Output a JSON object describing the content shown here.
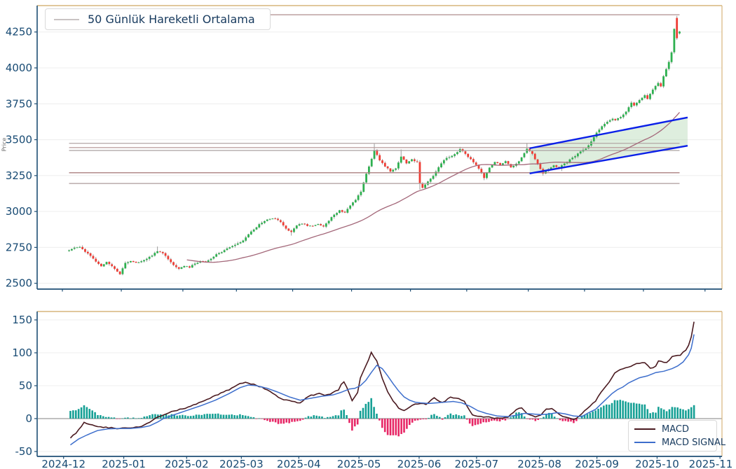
{
  "figure": {
    "background": "#ffffff"
  },
  "x_ticks": [
    {
      "label": "2024-12",
      "day": -0.5
    },
    {
      "label": "2025-01",
      "day": 21.5
    },
    {
      "label": "2025-02",
      "day": 44.5
    },
    {
      "label": "2025-03",
      "day": 64.5
    },
    {
      "label": "2025-04",
      "day": 85.5
    },
    {
      "label": "2025-05",
      "day": 107.5
    },
    {
      "label": "2025-06",
      "day": 129.5
    },
    {
      "label": "2025-07",
      "day": 150.5
    },
    {
      "label": "2025-08",
      "day": 173.5
    },
    {
      "label": "2025-09",
      "day": 194.5
    },
    {
      "label": "2025-10",
      "day": 216.5
    },
    {
      "label": "2025-11",
      "day": 239.5
    }
  ],
  "chart_data": [
    {
      "type": "candlestick",
      "title": "",
      "ylabel": "Price",
      "xlabel": "",
      "y_ticks": [
        2500,
        2750,
        3000,
        3250,
        3500,
        3750,
        4000,
        4250
      ],
      "ylim": [
        2459,
        4434
      ],
      "grid": "horizontal",
      "legend_position": "upper-left",
      "legend": [
        {
          "label": "50 Günlük Hareketli Ortalama",
          "sample_color": "#c9c3c3"
        }
      ],
      "day_range": [
        2,
        230
      ],
      "close_anchors": [
        [
          2,
          2728
        ],
        [
          4,
          2748
        ],
        [
          6,
          2756
        ],
        [
          8,
          2722
        ],
        [
          10,
          2692
        ],
        [
          12,
          2648
        ],
        [
          14,
          2618
        ],
        [
          16,
          2650
        ],
        [
          18,
          2618
        ],
        [
          20,
          2578
        ],
        [
          21,
          2566
        ],
        [
          23,
          2642
        ],
        [
          25,
          2654
        ],
        [
          27,
          2642
        ],
        [
          29,
          2655
        ],
        [
          31,
          2668
        ],
        [
          33,
          2695
        ],
        [
          35,
          2725
        ],
        [
          37,
          2712
        ],
        [
          39,
          2668
        ],
        [
          41,
          2625
        ],
        [
          43,
          2602
        ],
        [
          45,
          2622
        ],
        [
          47,
          2612
        ],
        [
          49,
          2638
        ],
        [
          51,
          2655
        ],
        [
          53,
          2648
        ],
        [
          55,
          2672
        ],
        [
          57,
          2700
        ],
        [
          59,
          2718
        ],
        [
          61,
          2740
        ],
        [
          63,
          2758
        ],
        [
          65,
          2775
        ],
        [
          67,
          2800
        ],
        [
          69,
          2842
        ],
        [
          71,
          2876
        ],
        [
          73,
          2910
        ],
        [
          75,
          2935
        ],
        [
          77,
          2948
        ],
        [
          79,
          2952
        ],
        [
          81,
          2928
        ],
        [
          83,
          2882
        ],
        [
          85,
          2856
        ],
        [
          87,
          2905
        ],
        [
          89,
          2915
        ],
        [
          91,
          2902
        ],
        [
          93,
          2898
        ],
        [
          95,
          2912
        ],
        [
          97,
          2895
        ],
        [
          99,
          2938
        ],
        [
          101,
          2978
        ],
        [
          103,
          3008
        ],
        [
          105,
          2990
        ],
        [
          107,
          3040
        ],
        [
          109,
          3082
        ],
        [
          111,
          3140
        ],
        [
          113,
          3260
        ],
        [
          115,
          3365
        ],
        [
          116,
          3430
        ],
        [
          118,
          3358
        ],
        [
          120,
          3315
        ],
        [
          122,
          3280
        ],
        [
          124,
          3298
        ],
        [
          126,
          3385
        ],
        [
          128,
          3335
        ],
        [
          130,
          3362
        ],
        [
          132,
          3345
        ],
        [
          133,
          3198
        ],
        [
          134,
          3165
        ],
        [
          136,
          3208
        ],
        [
          138,
          3250
        ],
        [
          140,
          3308
        ],
        [
          142,
          3360
        ],
        [
          144,
          3380
        ],
        [
          146,
          3398
        ],
        [
          148,
          3435
        ],
        [
          150,
          3400
        ],
        [
          152,
          3362
        ],
        [
          154,
          3325
        ],
        [
          156,
          3270
        ],
        [
          157,
          3235
        ],
        [
          159,
          3305
        ],
        [
          161,
          3345
        ],
        [
          163,
          3325
        ],
        [
          165,
          3348
        ],
        [
          167,
          3308
        ],
        [
          169,
          3330
        ],
        [
          171,
          3375
        ],
        [
          173,
          3440
        ],
        [
          175,
          3400
        ],
        [
          177,
          3332
        ],
        [
          179,
          3265
        ],
        [
          181,
          3295
        ],
        [
          183,
          3320
        ],
        [
          185,
          3305
        ],
        [
          187,
          3335
        ],
        [
          189,
          3360
        ],
        [
          191,
          3385
        ],
        [
          193,
          3418
        ],
        [
          195,
          3440
        ],
        [
          197,
          3485
        ],
        [
          199,
          3550
        ],
        [
          201,
          3596
        ],
        [
          203,
          3626
        ],
        [
          205,
          3648
        ],
        [
          206,
          3634
        ],
        [
          208,
          3660
        ],
        [
          210,
          3695
        ],
        [
          212,
          3755
        ],
        [
          213,
          3740
        ],
        [
          215,
          3776
        ],
        [
          217,
          3808
        ],
        [
          218,
          3784
        ],
        [
          220,
          3848
        ],
        [
          222,
          3898
        ],
        [
          223,
          3874
        ],
        [
          224,
          3942
        ],
        [
          225,
          3994
        ],
        [
          226,
          4040
        ],
        [
          227,
          4108
        ],
        [
          228,
          4272
        ],
        [
          229,
          4208
        ],
        [
          230,
          4255
        ]
      ],
      "open_overrides": {
        "229": 4348,
        "230": 4240
      },
      "high_overrides": {
        "35": 2756,
        "116": 3472,
        "126": 3432,
        "148": 3450,
        "173": 3478,
        "197": 3502,
        "229": 4362
      },
      "low_overrides": {
        "21": 2558,
        "43": 2592,
        "85": 2832,
        "133": 3152,
        "157": 3218,
        "179": 3250,
        "186": 3282
      },
      "ma_label": "50 Günlük Hareketli Ortalama",
      "hlines": [
        {
          "value": 4370,
          "color": "#ad8d8d"
        },
        {
          "value": 3475,
          "color": "#b3a6a6"
        },
        {
          "value": 3445,
          "color": "#b89a9a"
        },
        {
          "value": 3425,
          "color": "#a8a0a0"
        },
        {
          "value": 3270,
          "color": "#ab7f7f"
        },
        {
          "value": 3195,
          "color": "#b3a2a2"
        }
      ],
      "channel": {
        "start_day": 174,
        "end_day": 233,
        "top_values": [
          3440,
          3655
        ],
        "bottom_values": [
          3265,
          3458
        ]
      }
    },
    {
      "type": "macd",
      "title": "",
      "ylabel": "",
      "xlabel": "",
      "y_ticks": [
        -50,
        0,
        50,
        100,
        150
      ],
      "ylim": [
        -57.5,
        163
      ],
      "grid": "horizontal",
      "legend_position": "lower-right",
      "legend": [
        {
          "label": "MACD",
          "sample_color": "#4a1a20"
        },
        {
          "label": "MACD SIGNAL",
          "sample_color": "#3d6ecc"
        }
      ],
      "day_range": [
        2,
        230
      ],
      "macd_anchors": [
        [
          2,
          -29
        ],
        [
          4,
          -22
        ],
        [
          7,
          -6
        ],
        [
          9,
          -9
        ],
        [
          11,
          -11
        ],
        [
          14,
          -13
        ],
        [
          17,
          -14
        ],
        [
          20,
          -15
        ],
        [
          24,
          -14
        ],
        [
          27,
          -13
        ],
        [
          29,
          -10
        ],
        [
          31,
          -6
        ],
        [
          33,
          0
        ],
        [
          36,
          6
        ],
        [
          40,
          12
        ],
        [
          45,
          17
        ],
        [
          50,
          26
        ],
        [
          55,
          35
        ],
        [
          61,
          46
        ],
        [
          64,
          53
        ],
        [
          66,
          55
        ],
        [
          68,
          53
        ],
        [
          72,
          48
        ],
        [
          76,
          38
        ],
        [
          79,
          30
        ],
        [
          83,
          26
        ],
        [
          86,
          24
        ],
        [
          89,
          34
        ],
        [
          93,
          38
        ],
        [
          95,
          36
        ],
        [
          97,
          37
        ],
        [
          100,
          44
        ],
        [
          101,
          52
        ],
        [
          102,
          56
        ],
        [
          103,
          48
        ],
        [
          105,
          27
        ],
        [
          107,
          40
        ],
        [
          108,
          62
        ],
        [
          110,
          80
        ],
        [
          112,
          100
        ],
        [
          114,
          88
        ],
        [
          116,
          62
        ],
        [
          118,
          40
        ],
        [
          120,
          27
        ],
        [
          122,
          16
        ],
        [
          124,
          12
        ],
        [
          126,
          18
        ],
        [
          128,
          22
        ],
        [
          130,
          23
        ],
        [
          132,
          22
        ],
        [
          135,
          31
        ],
        [
          138,
          24
        ],
        [
          141,
          33
        ],
        [
          144,
          30
        ],
        [
          146,
          27
        ],
        [
          149,
          5
        ],
        [
          152,
          3
        ],
        [
          154,
          3
        ],
        [
          157,
          1
        ],
        [
          159,
          0
        ],
        [
          162,
          2
        ],
        [
          165,
          14
        ],
        [
          167,
          16
        ],
        [
          169,
          8
        ],
        [
          172,
          3
        ],
        [
          174,
          6
        ],
        [
          176,
          14
        ],
        [
          178,
          16
        ],
        [
          181,
          5
        ],
        [
          185,
          0
        ],
        [
          186,
          -2
        ],
        [
          188,
          3
        ],
        [
          191,
          16
        ],
        [
          194,
          27
        ],
        [
          196,
          40
        ],
        [
          199,
          56
        ],
        [
          201,
          69
        ],
        [
          204,
          76
        ],
        [
          207,
          80
        ],
        [
          209,
          83
        ],
        [
          212,
          85
        ],
        [
          214,
          76
        ],
        [
          216,
          80
        ],
        [
          217,
          88
        ],
        [
          220,
          85
        ],
        [
          222,
          94
        ],
        [
          225,
          97
        ],
        [
          227,
          104
        ],
        [
          228,
          112
        ],
        [
          229,
          125
        ],
        [
          230,
          148
        ]
      ],
      "signal_anchors": [
        [
          2,
          -40
        ],
        [
          5,
          -31
        ],
        [
          8,
          -25
        ],
        [
          12,
          -18
        ],
        [
          16,
          -15.5
        ],
        [
          20,
          -15
        ],
        [
          24,
          -15
        ],
        [
          28,
          -13.5
        ],
        [
          31,
          -11
        ],
        [
          34,
          -5
        ],
        [
          36,
          0
        ],
        [
          40,
          6
        ],
        [
          45,
          13
        ],
        [
          50,
          20
        ],
        [
          55,
          28
        ],
        [
          60,
          38
        ],
        [
          64,
          47
        ],
        [
          67,
          51
        ],
        [
          70,
          50
        ],
        [
          74,
          46
        ],
        [
          78,
          40
        ],
        [
          82,
          33
        ],
        [
          86,
          28
        ],
        [
          90,
          31
        ],
        [
          94,
          34
        ],
        [
          98,
          36
        ],
        [
          101,
          40
        ],
        [
          104,
          45
        ],
        [
          106,
          46
        ],
        [
          108,
          50
        ],
        [
          110,
          58
        ],
        [
          112,
          70
        ],
        [
          114,
          81
        ],
        [
          116,
          76
        ],
        [
          118,
          65
        ],
        [
          120,
          53
        ],
        [
          122,
          42
        ],
        [
          124,
          33
        ],
        [
          126,
          28
        ],
        [
          128,
          25
        ],
        [
          130,
          24
        ],
        [
          133,
          23
        ],
        [
          136,
          24
        ],
        [
          139,
          25
        ],
        [
          142,
          26
        ],
        [
          145,
          24
        ],
        [
          148,
          19
        ],
        [
          151,
          12
        ],
        [
          154,
          8
        ],
        [
          158,
          4
        ],
        [
          162,
          3
        ],
        [
          165,
          5
        ],
        [
          168,
          8
        ],
        [
          171,
          7
        ],
        [
          174,
          6
        ],
        [
          177,
          7
        ],
        [
          180,
          9
        ],
        [
          183,
          7
        ],
        [
          186,
          4
        ],
        [
          189,
          3
        ],
        [
          191,
          8
        ],
        [
          194,
          14
        ],
        [
          196,
          22
        ],
        [
          198,
          30
        ],
        [
          200,
          38
        ],
        [
          202,
          44
        ],
        [
          204,
          48
        ],
        [
          206,
          54
        ],
        [
          208,
          58
        ],
        [
          210,
          62
        ],
        [
          213,
          65
        ],
        [
          216,
          70
        ],
        [
          219,
          72
        ],
        [
          222,
          76
        ],
        [
          224,
          80
        ],
        [
          226,
          86
        ],
        [
          228,
          97
        ],
        [
          229,
          107
        ],
        [
          230,
          128
        ]
      ],
      "histogram": "macd_minus_signal"
    }
  ],
  "colors": {
    "up": "#2eb050",
    "down": "#ee3d35",
    "wick": "#9b9b9b",
    "ma50": "#a4687a",
    "channel_line": "#0a1fe8",
    "channel_fill": "rgba(146,199,146,0.30)",
    "macd_line": "#4a1a20",
    "signal_line": "#3d6ecc",
    "hist_pos": "#16a095",
    "hist_neg": "#e72766",
    "spine_dark": "#1e4e74",
    "spine_tan": "#d7b57c",
    "tick_label": "#174a73",
    "grid": "#efefef",
    "zero_line": "#9a9a9a",
    "axis_label": "#6b6b6b"
  }
}
